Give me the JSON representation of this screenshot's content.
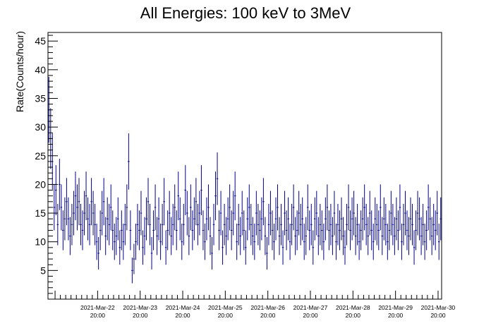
{
  "chart_data": {
    "type": "scatter",
    "title": "All Energies:  100 keV to 3MeV",
    "xlabel": "",
    "ylabel": "Rate(Counts/hour)",
    "x_range": [
      "2021-03-21 16:00",
      "2021-03-30 22:00"
    ],
    "ylim": [
      0,
      46.5
    ],
    "y_ticks": [
      5,
      10,
      15,
      20,
      25,
      30,
      35,
      40,
      45
    ],
    "x_ticks": [
      {
        "date": "2021-Mar-22",
        "time": "20:00"
      },
      {
        "date": "2021-Mar-23",
        "time": "20:00"
      },
      {
        "date": "2021-Mar-24",
        "time": "20:00"
      },
      {
        "date": "2021-Mar-25",
        "time": "20:00"
      },
      {
        "date": "2021-Mar-26",
        "time": "20:00"
      },
      {
        "date": "2021-Mar-27",
        "time": "20:00"
      },
      {
        "date": "2021-Mar-28",
        "time": "20:00"
      },
      {
        "date": "2021-Mar-29",
        "time": "20:00"
      },
      {
        "date": "2021-Mar-30",
        "time": "20:00"
      }
    ],
    "grid": false,
    "legend": "none",
    "marker": "error bars (sqrt(N) vertical, 1 hour bin width)",
    "series": [
      {
        "start": "2021-03-21 16:00",
        "bin_hours": 1,
        "color": "#00008b",
        "values": [
          33,
          28,
          24,
          16,
          19,
          13,
          20,
          16,
          12,
          14,
          17,
          14,
          11,
          13,
          15,
          18,
          16,
          17,
          13,
          12,
          15,
          18,
          14,
          13,
          17,
          15,
          13,
          10,
          8,
          12,
          15,
          17,
          11,
          14,
          13,
          16,
          12,
          10,
          11,
          14,
          9,
          12,
          10,
          13,
          16,
          24,
          12,
          5,
          7,
          10,
          13,
          12,
          15,
          9,
          11,
          14,
          17,
          13,
          8,
          12,
          16,
          11,
          14,
          10,
          13,
          17,
          9,
          12,
          15,
          11,
          13,
          16,
          12,
          18,
          14,
          10,
          13,
          19,
          15,
          11,
          16,
          12,
          14,
          17,
          13,
          15,
          19,
          12,
          10,
          14,
          16,
          11,
          8,
          13,
          18,
          21,
          12,
          15,
          9,
          13,
          11,
          14,
          16,
          12,
          15,
          18,
          10,
          13,
          11,
          15,
          12,
          9,
          14,
          16,
          13,
          11,
          10,
          15,
          13,
          12,
          14,
          17,
          11,
          8,
          13,
          15,
          12,
          10,
          14,
          16,
          11,
          13,
          9,
          15,
          12,
          14,
          10,
          13,
          16,
          11,
          12,
          15,
          13,
          14,
          10,
          11,
          16,
          12,
          13,
          9,
          14,
          15,
          11,
          13,
          12,
          10,
          14,
          16,
          12,
          13,
          11,
          15,
          10,
          13,
          12,
          14,
          11,
          9,
          13,
          16,
          12,
          14,
          15,
          11,
          13,
          10,
          12,
          14,
          16,
          13,
          11,
          15,
          12,
          10,
          14,
          13,
          12,
          16,
          11,
          14,
          13,
          10,
          12,
          15,
          13,
          11,
          14,
          12,
          16,
          10,
          13,
          15,
          12,
          11,
          14,
          13,
          9,
          12,
          15,
          14,
          11,
          13,
          10,
          12,
          16,
          14,
          11,
          13,
          12,
          15,
          10,
          14,
          13,
          11,
          12,
          16,
          13,
          14,
          10,
          12,
          15,
          11,
          13,
          14,
          12,
          10,
          15,
          13,
          11,
          14,
          12,
          16,
          13,
          10,
          12,
          14,
          15,
          11,
          13,
          12,
          14,
          10,
          16,
          12,
          13,
          11,
          15,
          14,
          12,
          10,
          13,
          11,
          14,
          12,
          15,
          13,
          10,
          16,
          12,
          14,
          11,
          13,
          12,
          15,
          10,
          14,
          13,
          12,
          11,
          15,
          13,
          14,
          12,
          10,
          13,
          16,
          11,
          14,
          12,
          13,
          15,
          10,
          12,
          14,
          11,
          13,
          12,
          15,
          14,
          10,
          13,
          12,
          11,
          14,
          16,
          12,
          13,
          10,
          15,
          12,
          14,
          11,
          13,
          12,
          10,
          14,
          15,
          13,
          11,
          12,
          16,
          13,
          14,
          10,
          12,
          13,
          11,
          15,
          12,
          14,
          13,
          10,
          12,
          15,
          11,
          13,
          14,
          12,
          10,
          13,
          16,
          12,
          11,
          14,
          13,
          12,
          15,
          10,
          13,
          11,
          14,
          12,
          13,
          15,
          10,
          12,
          14,
          11,
          13,
          12,
          16,
          14,
          10,
          13,
          12,
          11,
          15,
          13,
          14,
          12,
          10,
          13,
          11,
          14,
          12,
          15,
          13,
          10,
          12,
          14,
          11,
          13,
          12,
          15,
          14,
          10,
          13,
          12,
          11,
          14,
          16,
          12,
          13,
          10,
          15,
          12,
          14,
          11,
          13,
          12,
          10,
          14,
          15,
          13,
          11,
          12,
          14,
          13,
          12,
          10,
          13,
          11,
          15,
          12,
          14,
          13,
          10,
          12,
          15,
          11,
          13,
          14,
          12,
          10,
          13,
          16,
          12,
          11,
          14,
          13,
          12,
          15,
          10,
          13,
          11,
          14,
          12,
          13,
          15,
          10,
          12,
          14,
          11,
          13,
          12,
          16,
          14,
          10,
          13,
          12,
          11,
          15,
          13,
          14,
          12,
          10,
          13,
          11,
          14,
          12,
          15,
          13,
          10,
          12,
          14,
          11,
          13,
          12,
          15,
          14,
          10,
          13,
          12,
          11,
          14,
          16,
          12,
          13,
          10,
          15,
          12,
          14,
          11,
          13,
          12,
          10,
          14,
          15,
          13,
          11,
          12,
          16,
          13,
          14,
          10,
          12,
          13,
          11,
          15,
          12,
          14,
          13,
          10,
          12,
          15,
          11,
          13,
          14,
          12,
          10,
          13,
          16,
          12,
          11,
          14,
          13,
          12,
          15,
          10,
          13,
          11,
          14,
          12,
          13,
          15,
          10,
          12,
          14,
          11,
          13,
          12,
          16,
          14,
          10,
          13,
          12,
          11,
          15,
          13,
          14,
          12,
          10,
          13,
          11,
          14,
          12,
          15,
          13,
          10,
          12,
          14,
          11,
          13,
          12,
          15,
          14,
          10,
          13,
          12,
          11,
          14,
          16,
          12,
          13,
          10,
          15,
          12,
          14,
          11,
          13,
          12,
          10,
          14,
          15,
          13,
          11,
          12,
          16,
          13,
          14,
          10,
          12,
          13,
          11,
          15,
          12,
          14,
          13,
          10,
          12,
          15,
          11,
          13,
          14,
          12,
          10,
          13,
          16,
          12,
          11,
          14,
          13,
          12,
          15,
          10,
          13,
          11,
          14,
          12,
          13,
          15,
          10,
          12,
          14,
          11,
          13,
          12,
          16,
          14,
          10,
          13,
          12,
          11,
          15,
          13,
          14,
          12,
          10,
          13,
          11,
          14,
          12,
          15,
          13,
          10,
          12,
          14,
          11,
          13,
          12,
          15,
          14,
          10,
          13,
          12,
          11,
          14,
          16,
          12,
          13,
          10,
          15,
          12,
          14,
          11,
          13,
          12,
          10,
          14,
          15,
          13,
          11,
          12,
          16,
          13,
          14,
          10,
          12,
          13,
          11,
          15,
          12,
          14,
          13,
          10,
          12,
          15,
          11,
          13,
          14,
          12,
          10,
          13,
          16,
          12,
          11,
          14,
          13,
          12,
          15,
          10,
          13,
          11,
          14,
          12,
          13,
          15,
          10,
          12,
          14,
          11,
          13,
          12,
          16,
          14,
          10,
          13,
          12,
          11,
          15,
          13,
          14,
          12,
          10,
          13,
          11,
          14,
          12,
          15,
          13,
          10,
          12,
          14,
          11,
          13,
          12,
          15,
          14,
          10,
          13,
          12,
          11,
          14,
          16,
          12,
          13,
          10,
          15,
          12,
          14,
          11,
          13,
          12,
          10,
          14,
          15,
          13,
          11,
          12,
          16,
          13,
          14,
          10,
          12
        ]
      }
    ]
  }
}
